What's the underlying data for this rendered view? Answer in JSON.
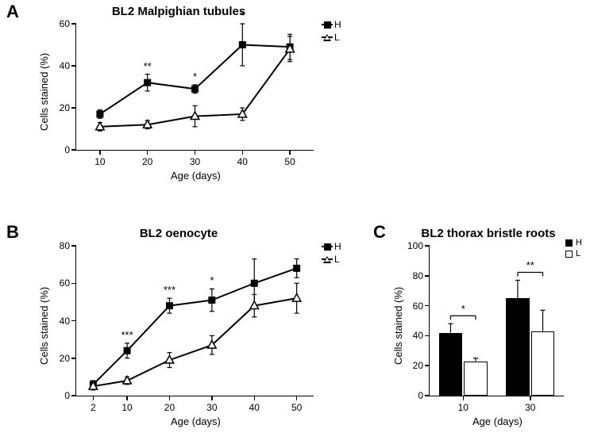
{
  "panelA": {
    "label": "A",
    "title": "BL2 Malpighian tubules",
    "title_fontsize": 15,
    "ylabel": "Cells stained (%)",
    "xlabel": "Age (days)",
    "label_fontsize": 13,
    "tick_fontsize": 12,
    "ylim": [
      0,
      60
    ],
    "ytick_step": 20,
    "xlim": [
      5,
      55
    ],
    "xticks": [
      10,
      20,
      30,
      40,
      50
    ],
    "series": [
      {
        "name": "H",
        "marker": "filled-square",
        "color": "#000000",
        "x": [
          10,
          20,
          30,
          40,
          50
        ],
        "y": [
          17,
          32,
          29,
          50,
          49
        ],
        "err": [
          2,
          4,
          2,
          10,
          6
        ]
      },
      {
        "name": "L",
        "marker": "open-triangle",
        "color": "#000000",
        "x": [
          10,
          20,
          30,
          40,
          50
        ],
        "y": [
          11,
          12,
          16,
          17,
          48
        ],
        "err": [
          2,
          2,
          5,
          3,
          6
        ]
      }
    ],
    "significance": [
      {
        "x": 20,
        "label": "**"
      },
      {
        "x": 30,
        "label": "*"
      },
      {
        "x": 40,
        "label": "*"
      }
    ],
    "line_width": 2,
    "marker_size": 9,
    "background_color": "#ffffff"
  },
  "panelB": {
    "label": "B",
    "title": "BL2 oenocyte",
    "title_fontsize": 15,
    "ylabel": "Cells stained (%)",
    "xlabel": "Age (days)",
    "label_fontsize": 13,
    "tick_fontsize": 12,
    "ylim": [
      0,
      80
    ],
    "ytick_step": 20,
    "xlim": [
      -2,
      54
    ],
    "xticks": [
      2,
      10,
      20,
      30,
      40,
      50
    ],
    "series": [
      {
        "name": "H",
        "marker": "filled-square",
        "color": "#000000",
        "x": [
          2,
          10,
          20,
          30,
          40,
          50
        ],
        "y": [
          6,
          24,
          48,
          51,
          60,
          68
        ],
        "err": [
          2,
          4,
          4,
          6,
          13,
          5
        ]
      },
      {
        "name": "L",
        "marker": "open-triangle",
        "color": "#000000",
        "x": [
          2,
          10,
          20,
          30,
          40,
          50
        ],
        "y": [
          5,
          8,
          19,
          27,
          48,
          52
        ],
        "err": [
          2,
          2,
          4,
          5,
          6,
          8
        ]
      }
    ],
    "significance": [
      {
        "x": 10,
        "label": "***"
      },
      {
        "x": 20,
        "label": "***"
      },
      {
        "x": 30,
        "label": "*"
      }
    ],
    "line_width": 2,
    "marker_size": 9,
    "background_color": "#ffffff"
  },
  "panelC": {
    "label": "C",
    "title": "BL2 thorax bristle roots",
    "title_fontsize": 15,
    "ylabel": "Cells stained (%)",
    "xlabel": "Age (days)",
    "label_fontsize": 13,
    "tick_fontsize": 12,
    "ylim": [
      0,
      100
    ],
    "ytick_step": 20,
    "xticks": [
      10,
      30
    ],
    "series": [
      {
        "name": "H",
        "type": "filled",
        "color": "#000000"
      },
      {
        "name": "L",
        "type": "open",
        "color": "#000000"
      }
    ],
    "groups": [
      {
        "x": 10,
        "H": 42,
        "H_err": 6,
        "L": 23,
        "L_err": 2,
        "sig": "*"
      },
      {
        "x": 30,
        "H": 65,
        "H_err": 12,
        "L": 43,
        "L_err": 14,
        "sig": "**"
      }
    ],
    "bar_width": 0.35,
    "background_color": "#ffffff"
  },
  "legend": {
    "H": "H",
    "L": "L"
  }
}
